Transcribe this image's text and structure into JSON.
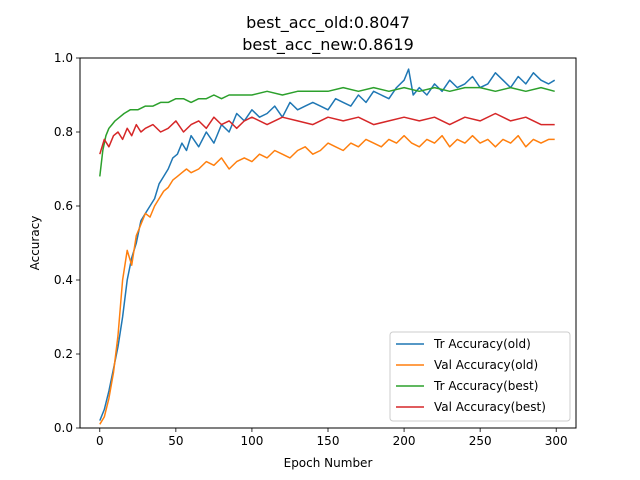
{
  "chart_data": {
    "type": "line",
    "title_lines": [
      "best_acc_old:0.8047",
      "best_acc_new:0.8619"
    ],
    "xlabel": "Epoch Number",
    "ylabel": "Accuracy",
    "xlim": [
      -13,
      313
    ],
    "ylim": [
      0.0,
      1.0
    ],
    "xticks": [
      0,
      50,
      100,
      150,
      200,
      250,
      300
    ],
    "yticks": [
      0.0,
      0.2,
      0.4,
      0.6,
      0.8,
      1.0
    ],
    "xtick_labels": [
      "0",
      "50",
      "100",
      "150",
      "200",
      "250",
      "300"
    ],
    "ytick_labels": [
      "0.0",
      "0.2",
      "0.4",
      "0.6",
      "0.8",
      "1.0"
    ],
    "grid": false,
    "legend_position": "lower-right",
    "series": [
      {
        "name": "Tr Accuracy(old)",
        "color": "#1f77b4",
        "x": [
          0,
          3,
          6,
          9,
          12,
          15,
          18,
          21,
          24,
          27,
          30,
          33,
          36,
          39,
          42,
          45,
          48,
          51,
          54,
          57,
          60,
          65,
          70,
          75,
          80,
          85,
          90,
          95,
          100,
          105,
          110,
          115,
          120,
          125,
          130,
          135,
          140,
          145,
          150,
          155,
          160,
          165,
          170,
          175,
          180,
          185,
          190,
          195,
          200,
          203,
          206,
          210,
          215,
          220,
          225,
          230,
          235,
          240,
          245,
          250,
          255,
          260,
          265,
          270,
          275,
          280,
          285,
          290,
          295,
          299
        ],
        "y": [
          0.02,
          0.05,
          0.1,
          0.16,
          0.22,
          0.3,
          0.4,
          0.46,
          0.5,
          0.56,
          0.58,
          0.6,
          0.62,
          0.66,
          0.68,
          0.7,
          0.73,
          0.74,
          0.77,
          0.75,
          0.79,
          0.76,
          0.8,
          0.77,
          0.82,
          0.8,
          0.85,
          0.83,
          0.86,
          0.84,
          0.85,
          0.87,
          0.84,
          0.88,
          0.86,
          0.87,
          0.88,
          0.87,
          0.86,
          0.89,
          0.88,
          0.87,
          0.9,
          0.88,
          0.91,
          0.9,
          0.89,
          0.92,
          0.94,
          0.97,
          0.9,
          0.92,
          0.9,
          0.93,
          0.91,
          0.94,
          0.92,
          0.93,
          0.95,
          0.92,
          0.93,
          0.96,
          0.94,
          0.92,
          0.95,
          0.93,
          0.96,
          0.94,
          0.93,
          0.94
        ]
      },
      {
        "name": "Val Accuracy(old)",
        "color": "#ff7f0e",
        "x": [
          0,
          3,
          6,
          9,
          12,
          15,
          18,
          21,
          24,
          27,
          30,
          33,
          36,
          39,
          42,
          45,
          48,
          51,
          54,
          57,
          60,
          65,
          70,
          75,
          80,
          85,
          90,
          95,
          100,
          105,
          110,
          115,
          120,
          125,
          130,
          135,
          140,
          145,
          150,
          155,
          160,
          165,
          170,
          175,
          180,
          185,
          190,
          195,
          200,
          205,
          210,
          215,
          220,
          225,
          230,
          235,
          240,
          245,
          250,
          255,
          260,
          265,
          270,
          275,
          280,
          285,
          290,
          295,
          299
        ],
        "y": [
          0.01,
          0.03,
          0.08,
          0.15,
          0.25,
          0.4,
          0.48,
          0.44,
          0.52,
          0.55,
          0.58,
          0.57,
          0.6,
          0.62,
          0.64,
          0.65,
          0.67,
          0.68,
          0.69,
          0.7,
          0.69,
          0.7,
          0.72,
          0.71,
          0.73,
          0.7,
          0.72,
          0.73,
          0.72,
          0.74,
          0.73,
          0.75,
          0.74,
          0.73,
          0.75,
          0.76,
          0.74,
          0.75,
          0.77,
          0.76,
          0.75,
          0.77,
          0.76,
          0.78,
          0.77,
          0.76,
          0.78,
          0.77,
          0.79,
          0.77,
          0.76,
          0.78,
          0.77,
          0.79,
          0.76,
          0.78,
          0.77,
          0.79,
          0.77,
          0.78,
          0.76,
          0.78,
          0.77,
          0.79,
          0.76,
          0.78,
          0.77,
          0.78,
          0.78
        ]
      },
      {
        "name": "Tr Accuracy(best)",
        "color": "#2ca02c",
        "x": [
          0,
          2,
          4,
          6,
          8,
          10,
          13,
          16,
          20,
          25,
          30,
          35,
          40,
          45,
          50,
          55,
          60,
          65,
          70,
          75,
          80,
          85,
          90,
          95,
          100,
          110,
          120,
          130,
          140,
          150,
          160,
          170,
          180,
          190,
          200,
          210,
          220,
          230,
          240,
          250,
          260,
          270,
          280,
          290,
          299
        ],
        "y": [
          0.68,
          0.75,
          0.79,
          0.81,
          0.82,
          0.83,
          0.84,
          0.85,
          0.86,
          0.86,
          0.87,
          0.87,
          0.88,
          0.88,
          0.89,
          0.89,
          0.88,
          0.89,
          0.89,
          0.9,
          0.89,
          0.9,
          0.9,
          0.9,
          0.9,
          0.91,
          0.9,
          0.91,
          0.91,
          0.91,
          0.92,
          0.91,
          0.92,
          0.91,
          0.92,
          0.91,
          0.92,
          0.91,
          0.92,
          0.92,
          0.91,
          0.92,
          0.91,
          0.92,
          0.91
        ]
      },
      {
        "name": "Val Accuracy(best)",
        "color": "#d62728",
        "x": [
          0,
          3,
          6,
          9,
          12,
          15,
          18,
          21,
          24,
          27,
          30,
          35,
          40,
          45,
          50,
          55,
          60,
          65,
          70,
          75,
          80,
          85,
          90,
          95,
          100,
          110,
          120,
          130,
          140,
          150,
          160,
          170,
          180,
          190,
          200,
          210,
          220,
          230,
          240,
          250,
          260,
          270,
          280,
          290,
          299
        ],
        "y": [
          0.74,
          0.78,
          0.76,
          0.79,
          0.8,
          0.78,
          0.81,
          0.79,
          0.82,
          0.8,
          0.81,
          0.82,
          0.8,
          0.81,
          0.83,
          0.8,
          0.82,
          0.83,
          0.81,
          0.84,
          0.82,
          0.83,
          0.81,
          0.83,
          0.84,
          0.82,
          0.84,
          0.83,
          0.82,
          0.84,
          0.83,
          0.84,
          0.82,
          0.83,
          0.84,
          0.83,
          0.84,
          0.82,
          0.84,
          0.83,
          0.85,
          0.83,
          0.84,
          0.82,
          0.82
        ]
      }
    ]
  }
}
